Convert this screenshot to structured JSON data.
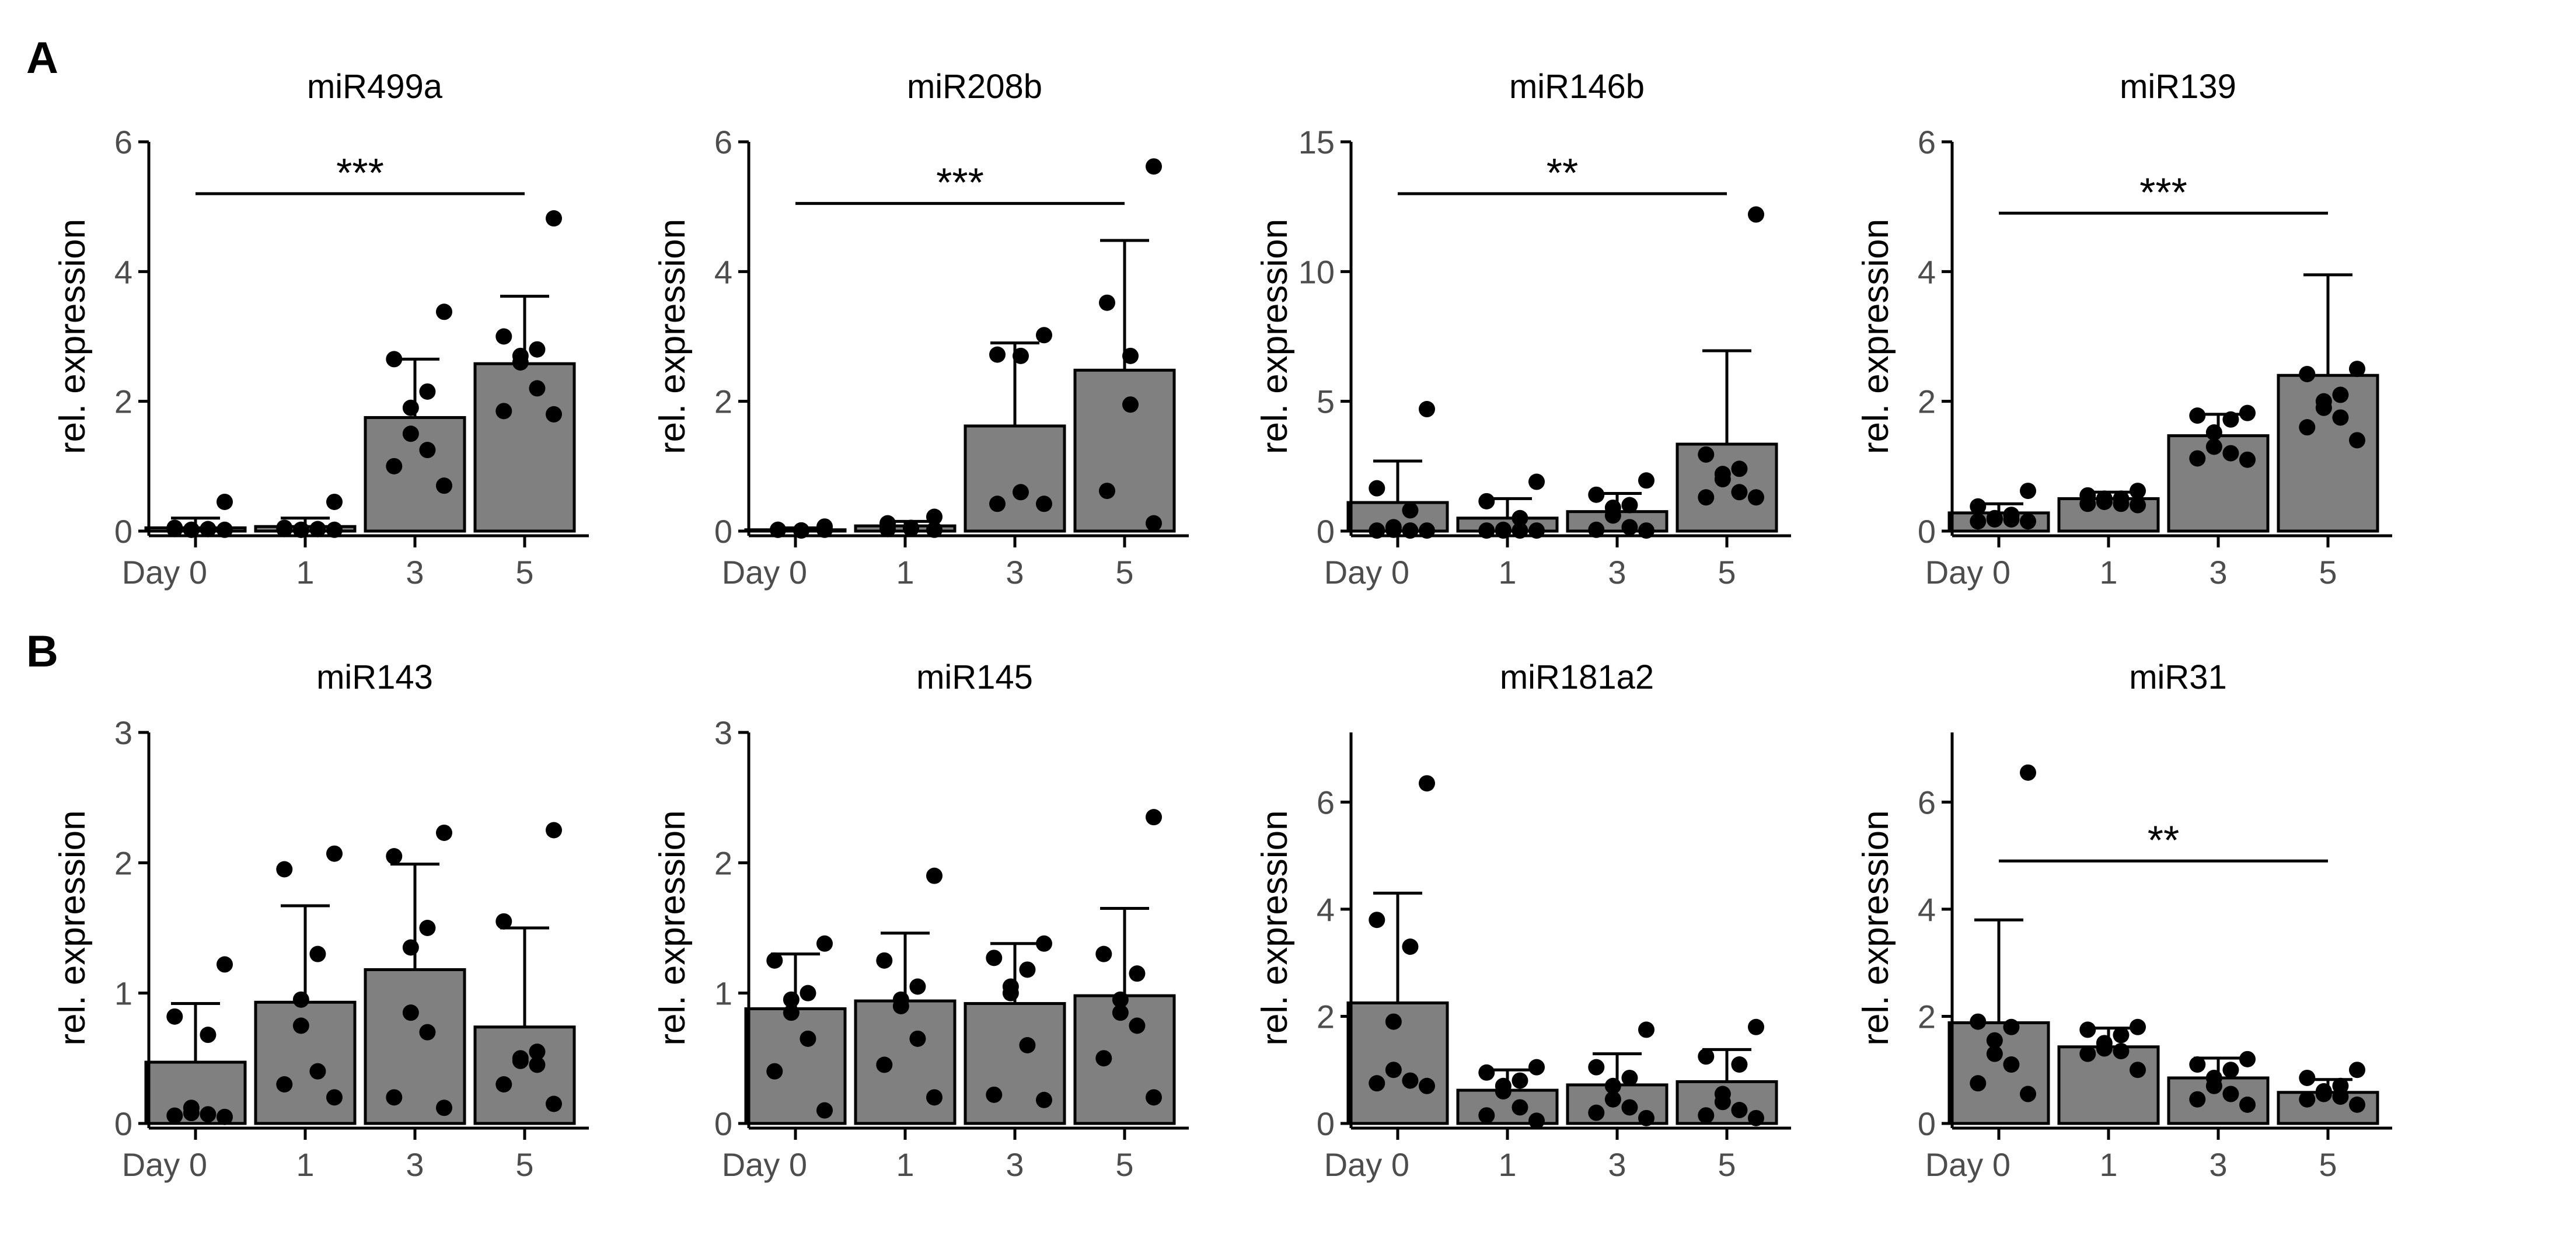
{
  "figure": {
    "panel_labels": [
      "A",
      "B"
    ],
    "colors": {
      "bar": "#808080",
      "bar_outline": "#000000",
      "point": "#000000",
      "axis": "#000000",
      "tick_text": "#4d4d4d"
    }
  },
  "chart_data": [
    {
      "type": "bar",
      "title": "miR499a",
      "xlabel": "",
      "ylabel": "rel. expression",
      "categories": [
        "Day 0",
        "1",
        "3",
        "5"
      ],
      "values": [
        0.05,
        0.07,
        1.75,
        2.58
      ],
      "error_upper": [
        0.2,
        0.2,
        2.65,
        3.62
      ],
      "points": [
        [
          0.45,
          0.05,
          0.03,
          0.02,
          0.02,
          0.03,
          0.03,
          0.02
        ],
        [
          0.45,
          0.05,
          0.03,
          0.02,
          0.02,
          0.03,
          0.03,
          0.02
        ],
        [
          3.38,
          2.65,
          2.15,
          1.9,
          1.5,
          1.25,
          1.0,
          0.7
        ],
        [
          4.82,
          3.0,
          2.8,
          2.7,
          2.6,
          2.2,
          1.85,
          1.8
        ]
      ],
      "yticks": [
        0,
        2,
        4,
        6
      ],
      "ylim": [
        0,
        6
      ],
      "significance": {
        "label": "***",
        "from": "Day 0",
        "to": "5",
        "y": 5.2
      }
    },
    {
      "type": "bar",
      "title": "miR208b",
      "xlabel": "",
      "ylabel": "rel. expression",
      "categories": [
        "Day 0",
        "1",
        "3",
        "5"
      ],
      "values": [
        0.02,
        0.08,
        1.62,
        2.48
      ],
      "error_upper": [
        0.05,
        0.15,
        2.9,
        4.48
      ],
      "points": [
        [
          0.07,
          0.02,
          0.01,
          0.01,
          0.02,
          0.02
        ],
        [
          0.22,
          0.12,
          0.05,
          0.04,
          0.03,
          0.02
        ],
        [
          3.02,
          2.72,
          2.7,
          0.6,
          0.42,
          0.42
        ],
        [
          5.62,
          3.52,
          2.7,
          1.95,
          0.62,
          0.12
        ]
      ],
      "yticks": [
        0,
        2,
        4,
        6
      ],
      "ylim": [
        0,
        6
      ],
      "significance": {
        "label": "***",
        "from": "Day 0",
        "to": "5",
        "y": 5.05
      }
    },
    {
      "type": "bar",
      "title": "miR146b",
      "xlabel": "",
      "ylabel": "rel. expression",
      "categories": [
        "Day 0",
        "1",
        "3",
        "5"
      ],
      "values": [
        1.1,
        0.5,
        0.75,
        3.35
      ],
      "error_upper": [
        2.7,
        1.25,
        1.45,
        6.95
      ],
      "points": [
        [
          4.7,
          1.65,
          0.8,
          0.15,
          0.05,
          0.02,
          0.02,
          0.02
        ],
        [
          1.9,
          1.15,
          0.5,
          0.05,
          0.02,
          0.02,
          0.02,
          0.02
        ],
        [
          1.95,
          1.4,
          1.0,
          0.9,
          0.6,
          0.15,
          0.05,
          0.02
        ],
        [
          12.2,
          2.95,
          2.4,
          2.2,
          2.0,
          1.5,
          1.3,
          1.3
        ]
      ],
      "yticks": [
        0,
        5,
        10,
        15
      ],
      "ylim": [
        0,
        15
      ],
      "significance": {
        "label": "**",
        "from": "Day 0",
        "to": "5",
        "y": 13.0
      }
    },
    {
      "type": "bar",
      "title": "miR139",
      "xlabel": "",
      "ylabel": "rel. expression",
      "categories": [
        "Day 0",
        "1",
        "3",
        "5"
      ],
      "values": [
        0.28,
        0.5,
        1.47,
        2.4
      ],
      "error_upper": [
        0.42,
        0.6,
        1.8,
        3.95
      ],
      "points": [
        [
          0.62,
          0.38,
          0.25,
          0.2,
          0.18,
          0.18,
          0.15,
          0.15
        ],
        [
          0.62,
          0.55,
          0.5,
          0.5,
          0.45,
          0.42,
          0.42,
          0.4
        ],
        [
          1.82,
          1.78,
          1.72,
          1.52,
          1.3,
          1.2,
          1.12,
          1.1
        ],
        [
          2.5,
          2.42,
          2.1,
          2.0,
          1.9,
          1.75,
          1.6,
          1.4
        ]
      ],
      "yticks": [
        0,
        2,
        4,
        6
      ],
      "ylim": [
        0,
        6
      ],
      "significance": {
        "label": "***",
        "from": "Day 0",
        "to": "5",
        "y": 4.9
      }
    },
    {
      "type": "bar",
      "title": "miR143",
      "xlabel": "",
      "ylabel": "rel. expression",
      "categories": [
        "Day 0",
        "1",
        "3",
        "5"
      ],
      "values": [
        0.47,
        0.93,
        1.18,
        0.74
      ],
      "error_upper": [
        0.92,
        1.67,
        1.99,
        1.5
      ],
      "points": [
        [
          1.22,
          0.82,
          0.68,
          0.12,
          0.08,
          0.07,
          0.06,
          0.05
        ],
        [
          2.07,
          1.95,
          1.3,
          0.95,
          0.75,
          0.4,
          0.3,
          0.2
        ],
        [
          2.23,
          2.05,
          1.5,
          1.35,
          0.85,
          0.7,
          0.2,
          0.12
        ],
        [
          2.25,
          1.55,
          0.55,
          0.5,
          0.48,
          0.45,
          0.3,
          0.15
        ]
      ],
      "yticks": [
        0,
        1,
        2,
        3
      ],
      "ylim": [
        0,
        3
      ],
      "significance": null
    },
    {
      "type": "bar",
      "title": "miR145",
      "xlabel": "",
      "ylabel": "rel. expression",
      "categories": [
        "Day 0",
        "1",
        "3",
        "5"
      ],
      "values": [
        0.88,
        0.94,
        0.92,
        0.98
      ],
      "error_upper": [
        1.3,
        1.46,
        1.38,
        1.65
      ],
      "points": [
        [
          1.38,
          1.25,
          1.0,
          0.95,
          0.85,
          0.65,
          0.4,
          0.1
        ],
        [
          1.9,
          1.25,
          1.05,
          0.95,
          0.9,
          0.65,
          0.45,
          0.2
        ],
        [
          1.38,
          1.27,
          1.18,
          1.05,
          1.0,
          0.6,
          0.22,
          0.18
        ],
        [
          2.35,
          1.3,
          1.15,
          0.95,
          0.85,
          0.75,
          0.5,
          0.2
        ]
      ],
      "yticks": [
        0,
        1,
        2,
        3
      ],
      "ylim": [
        0,
        3
      ],
      "significance": null
    },
    {
      "type": "bar",
      "title": "miR181a2",
      "xlabel": "",
      "ylabel": "rel. expression",
      "categories": [
        "Day 0",
        "1",
        "3",
        "5"
      ],
      "values": [
        2.25,
        0.62,
        0.72,
        0.78
      ],
      "error_upper": [
        4.3,
        1.0,
        1.3,
        1.38
      ],
      "points": [
        [
          6.35,
          3.8,
          3.3,
          1.9,
          1.0,
          0.8,
          0.75,
          0.7
        ],
        [
          1.05,
          0.95,
          0.8,
          0.7,
          0.6,
          0.3,
          0.15,
          0.05
        ],
        [
          1.75,
          1.05,
          0.85,
          0.7,
          0.45,
          0.3,
          0.2,
          0.1
        ],
        [
          1.8,
          1.25,
          1.1,
          0.55,
          0.4,
          0.25,
          0.15,
          0.1
        ]
      ],
      "yticks": [
        0,
        2,
        4,
        6
      ],
      "ylim": [
        0,
        7.3
      ],
      "significance": null
    },
    {
      "type": "bar",
      "title": "miR31",
      "xlabel": "",
      "ylabel": "rel. expression",
      "categories": [
        "Day 0",
        "1",
        "3",
        "5"
      ],
      "values": [
        1.88,
        1.43,
        0.85,
        0.58
      ],
      "error_upper": [
        3.8,
        1.78,
        1.22,
        0.82
      ],
      "points": [
        [
          6.55,
          1.9,
          1.8,
          1.55,
          1.3,
          1.1,
          0.75,
          0.55
        ],
        [
          1.8,
          1.75,
          1.65,
          1.5,
          1.4,
          1.35,
          1.3,
          1.0
        ],
        [
          1.2,
          1.1,
          1.0,
          0.85,
          0.7,
          0.55,
          0.45,
          0.35
        ],
        [
          1.0,
          0.85,
          0.7,
          0.6,
          0.55,
          0.5,
          0.45,
          0.35
        ]
      ],
      "yticks": [
        0,
        2,
        4,
        6
      ],
      "ylim": [
        0,
        7.3
      ],
      "significance": {
        "label": "**",
        "from": "Day 0",
        "to": "5",
        "y": 4.9
      }
    }
  ]
}
